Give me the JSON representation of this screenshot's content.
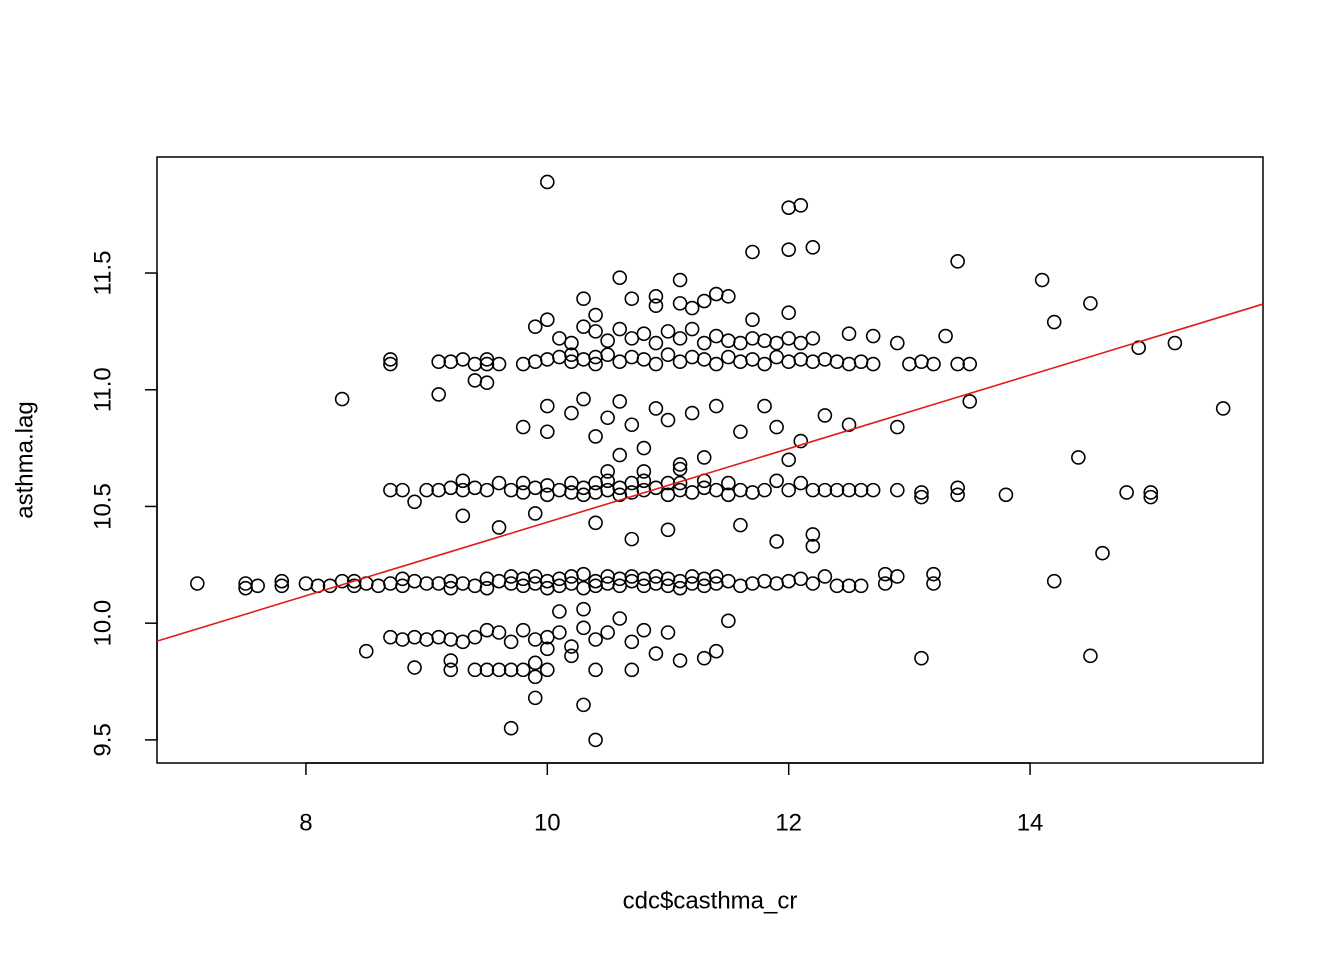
{
  "chart_data": {
    "type": "scatter",
    "xlabel": "cdc$casthma_cr",
    "ylabel": "asthma.lag",
    "xlim": [
      6.766,
      15.93
    ],
    "ylim": [
      9.401,
      11.997
    ],
    "xticks": [
      8,
      10,
      12,
      14
    ],
    "yticks": [
      9.5,
      {
        "value": 10,
        "label": "10.0"
      },
      10.5,
      {
        "value": 11,
        "label": "11.0"
      },
      11.5
    ],
    "marker": "open-circle",
    "series": [
      {
        "color": "#000000",
        "x": [
          7.5,
          7.5,
          7.6,
          7.8,
          7.8,
          8.0,
          8.1,
          8.2,
          8.3,
          8.4,
          8.4,
          8.5,
          8.6,
          8.7,
          8.8,
          8.8,
          8.9,
          9.0,
          9.1,
          9.2,
          9.2,
          9.3,
          9.4,
          9.5,
          9.5,
          9.6,
          9.7,
          9.7,
          9.8,
          9.8,
          9.9,
          9.9,
          10.0,
          10.0,
          10.1,
          10.1,
          10.2,
          10.2,
          10.3,
          10.3,
          10.4,
          10.4,
          10.5,
          10.5,
          10.6,
          10.6,
          10.7,
          10.7,
          10.8,
          10.8,
          10.9,
          10.9,
          11.0,
          11.0,
          11.1,
          11.1,
          11.2,
          11.2,
          11.3,
          11.3,
          11.4,
          11.4,
          11.5,
          11.6,
          11.7,
          11.8,
          11.9,
          12.0,
          12.1,
          12.2,
          12.3,
          12.4,
          12.5
        ],
        "y": [
          10.17,
          10.15,
          10.16,
          10.18,
          10.16,
          10.17,
          10.16,
          10.16,
          10.18,
          10.18,
          10.16,
          10.17,
          10.16,
          10.17,
          10.19,
          10.16,
          10.18,
          10.17,
          10.17,
          10.18,
          10.15,
          10.17,
          10.16,
          10.19,
          10.15,
          10.18,
          10.17,
          10.2,
          10.16,
          10.19,
          10.17,
          10.2,
          10.18,
          10.15,
          10.19,
          10.16,
          10.2,
          10.17,
          10.15,
          10.21,
          10.18,
          10.16,
          10.2,
          10.17,
          10.19,
          10.16,
          10.18,
          10.2,
          10.16,
          10.19,
          10.17,
          10.2,
          10.16,
          10.19,
          10.18,
          10.15,
          10.2,
          10.17,
          10.16,
          10.19,
          10.17,
          10.2,
          10.18,
          10.16,
          10.17,
          10.18,
          10.17,
          10.18,
          10.19,
          10.17,
          10.2,
          10.16,
          10.16
        ]
      },
      {
        "color": "#000000",
        "x": [
          8.7,
          8.8,
          8.9,
          9.0,
          9.1,
          9.2,
          9.3,
          9.3,
          9.4,
          9.5,
          9.6,
          9.7,
          9.8,
          9.8,
          9.9,
          10.0,
          10.0,
          10.1,
          10.2,
          10.2,
          10.3,
          10.3,
          10.4,
          10.4,
          10.5,
          10.5,
          10.6,
          10.6,
          10.7,
          10.7,
          10.8,
          10.8,
          10.9,
          11.0,
          11.0,
          11.1,
          11.1,
          11.2,
          11.3,
          11.3,
          11.4,
          11.5,
          11.5,
          11.6,
          11.7,
          11.8,
          11.9,
          12.0,
          12.1,
          12.2,
          12.3,
          12.4,
          12.5,
          12.6,
          12.7,
          12.9,
          13.1,
          13.1,
          13.4,
          13.4
        ],
        "y": [
          10.57,
          10.57,
          10.52,
          10.57,
          10.57,
          10.58,
          10.61,
          10.57,
          10.58,
          10.57,
          10.6,
          10.57,
          10.56,
          10.6,
          10.58,
          10.55,
          10.59,
          10.57,
          10.6,
          10.56,
          10.58,
          10.55,
          10.6,
          10.56,
          10.57,
          10.61,
          10.58,
          10.55,
          10.6,
          10.56,
          10.57,
          10.61,
          10.58,
          10.55,
          10.6,
          10.57,
          10.6,
          10.56,
          10.58,
          10.61,
          10.57,
          10.6,
          10.55,
          10.57,
          10.56,
          10.57,
          10.61,
          10.57,
          10.6,
          10.57,
          10.57,
          10.57,
          10.57,
          10.57,
          10.57,
          10.57,
          10.56,
          10.54,
          10.58,
          10.55
        ]
      },
      {
        "color": "#000000",
        "x": [
          8.7,
          8.7,
          9.2,
          9.3,
          9.4,
          9.5,
          9.5,
          9.6,
          9.8,
          9.9,
          10.0,
          10.1,
          10.2,
          10.2,
          10.3,
          10.4,
          10.4,
          10.5,
          10.6,
          10.7,
          10.8,
          10.9,
          11.0,
          11.1,
          11.2,
          11.3,
          11.4,
          11.5,
          11.6,
          11.7,
          11.8,
          11.9,
          12.0,
          12.1,
          12.2,
          12.3,
          12.4,
          12.5,
          12.6,
          12.7,
          13.0,
          13.1,
          13.2,
          13.4,
          13.5
        ],
        "y": [
          11.11,
          11.13,
          11.12,
          11.13,
          11.11,
          11.13,
          11.11,
          11.11,
          11.11,
          11.12,
          11.13,
          11.14,
          11.12,
          11.15,
          11.13,
          11.14,
          11.11,
          11.15,
          11.12,
          11.14,
          11.13,
          11.11,
          11.15,
          11.12,
          11.14,
          11.13,
          11.11,
          11.14,
          11.12,
          11.13,
          11.11,
          11.14,
          11.12,
          11.13,
          11.12,
          11.13,
          11.12,
          11.11,
          11.12,
          11.11,
          11.11,
          11.12,
          11.11,
          11.11,
          11.11
        ]
      },
      {
        "color": "#000000",
        "x": [
          9.9,
          10.0,
          10.1,
          10.2,
          10.3,
          10.4,
          10.5,
          10.6,
          10.7,
          10.8,
          10.9,
          11.0,
          11.1,
          11.2,
          11.3,
          11.4,
          11.5,
          11.6,
          11.7,
          11.8,
          11.9,
          12.0,
          12.1,
          12.2,
          12.5,
          12.7,
          12.9,
          13.3,
          10.3,
          10.7,
          10.9,
          11.1,
          11.3,
          11.5,
          11.7,
          12.0,
          11.4,
          10.4,
          10.9,
          11.2
        ],
        "y": [
          11.27,
          11.3,
          11.22,
          11.2,
          11.27,
          11.25,
          11.21,
          11.26,
          11.22,
          11.24,
          11.2,
          11.25,
          11.22,
          11.26,
          11.2,
          11.23,
          11.21,
          11.2,
          11.22,
          11.21,
          11.2,
          11.22,
          11.2,
          11.22,
          11.24,
          11.23,
          11.2,
          11.23,
          11.39,
          11.39,
          11.4,
          11.37,
          11.38,
          11.4,
          11.3,
          11.33,
          11.41,
          11.32,
          11.36,
          11.35
        ]
      },
      {
        "color": "#000000",
        "x": [
          8.7,
          8.8,
          8.9,
          9.0,
          9.1,
          9.2,
          9.3,
          9.4,
          9.5,
          9.6,
          9.7,
          9.8,
          9.9,
          10.0,
          10.1,
          10.2,
          10.3,
          10.4,
          10.5,
          10.7,
          10.8,
          11.0,
          9.2,
          9.4,
          9.5,
          9.6,
          9.7,
          9.8,
          9.9,
          10.0,
          10.2,
          10.4,
          10.7,
          10.9,
          11.1,
          8.9,
          9.2,
          9.9,
          11.3,
          11.4
        ],
        "y": [
          9.94,
          9.93,
          9.94,
          9.93,
          9.94,
          9.93,
          9.92,
          9.94,
          9.97,
          9.96,
          9.92,
          9.97,
          9.93,
          9.94,
          9.96,
          9.9,
          9.98,
          9.93,
          9.96,
          9.92,
          9.97,
          9.96,
          9.8,
          9.8,
          9.8,
          9.8,
          9.8,
          9.8,
          9.83,
          9.8,
          9.86,
          9.8,
          9.8,
          9.87,
          9.84,
          9.81,
          9.84,
          9.77,
          9.85,
          9.88
        ]
      },
      {
        "color": "#000000",
        "x": [
          9.1,
          9.4,
          9.5,
          9.8,
          10.0,
          10.2,
          10.3,
          10.4,
          10.5,
          10.6,
          10.7,
          10.9,
          11.0,
          11.2,
          11.4,
          11.6,
          11.8,
          12.0,
          10.6,
          10.8,
          11.1,
          11.3,
          9.3,
          9.6,
          9.9,
          10.4,
          10.7,
          11.0,
          11.6,
          11.9,
          12.2,
          12.2,
          10.0,
          10.5,
          10.8,
          11.1,
          10.3,
          10.1,
          10.6,
          11.5
        ],
        "y": [
          11.12,
          11.04,
          11.03,
          10.84,
          10.93,
          10.9,
          10.96,
          10.8,
          10.88,
          10.95,
          10.85,
          10.92,
          10.87,
          10.9,
          10.93,
          10.82,
          10.93,
          10.7,
          10.72,
          10.75,
          10.68,
          10.71,
          10.46,
          10.41,
          10.47,
          10.43,
          10.36,
          10.4,
          10.42,
          10.35,
          10.38,
          10.33,
          10.82,
          10.65,
          10.65,
          10.66,
          10.06,
          10.05,
          10.02,
          10.01
        ]
      },
      {
        "color": "#000000",
        "x": [
          10.0,
          12.0,
          12.1,
          11.7,
          12.0,
          12.2,
          13.4,
          10.6,
          11.1,
          14.1,
          14.5,
          14.2,
          15.2,
          14.9,
          15.6,
          13.5,
          14.4,
          14.6,
          14.2,
          14.5,
          13.1,
          10.0,
          9.7,
          10.3,
          10.4,
          9.9,
          8.3,
          9.1,
          8.5,
          7.1,
          13.8,
          14.8,
          15.0,
          15.0,
          12.9,
          12.5,
          12.3,
          12.1,
          11.9,
          13.2,
          13.2,
          12.9,
          12.8,
          12.8,
          12.6
        ],
        "y": [
          11.89,
          11.78,
          11.79,
          11.59,
          11.6,
          11.61,
          11.55,
          11.48,
          11.47,
          11.47,
          11.37,
          11.29,
          11.2,
          11.18,
          10.92,
          10.95,
          10.71,
          10.3,
          10.18,
          9.86,
          9.85,
          9.89,
          9.55,
          9.65,
          9.5,
          9.68,
          10.96,
          10.98,
          9.88,
          10.17,
          10.55,
          10.56,
          10.54,
          10.56,
          10.84,
          10.85,
          10.89,
          10.78,
          10.84,
          10.21,
          10.17,
          10.2,
          10.21,
          10.17,
          10.16
        ]
      }
    ],
    "fit_line": {
      "color": "#e31a1c",
      "x": [
        6.766,
        15.93
      ],
      "y": [
        9.923,
        11.367
      ]
    }
  }
}
